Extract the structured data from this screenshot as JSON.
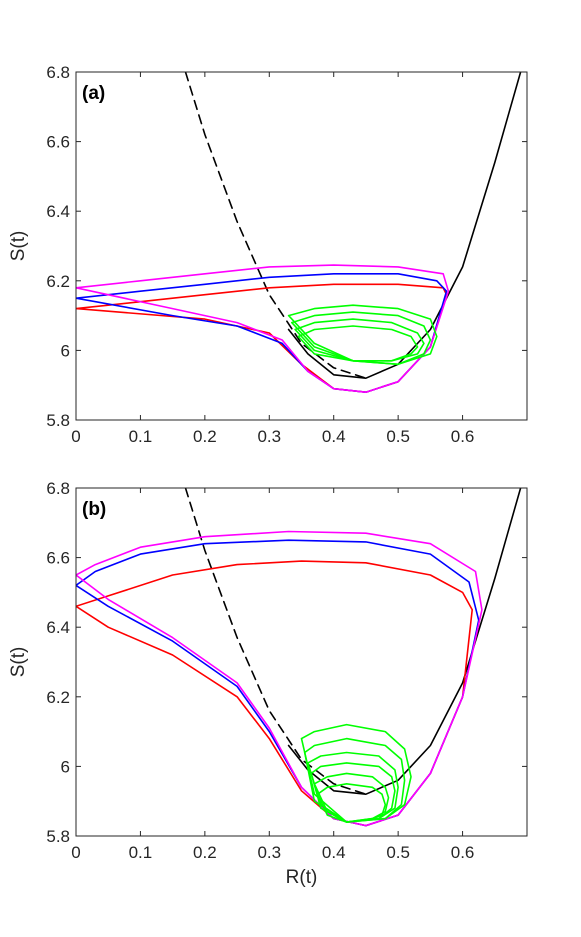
{
  "chart_data": [
    {
      "type": "line",
      "panel_label": "(a)",
      "xlabel": "",
      "ylabel": "S(t)",
      "xlim": [
        0,
        0.7
      ],
      "ylim": [
        5.8,
        6.8
      ],
      "xticks": [
        "0",
        "0.1",
        "0.2",
        "0.3",
        "0.4",
        "0.5",
        "0.6"
      ],
      "yticks": [
        "5.8",
        "6",
        "6.2",
        "6.4",
        "6.6",
        "6.8"
      ],
      "grid": false,
      "colors": {
        "nullcline_solid": "#000000",
        "nullcline_dashed": "#000000",
        "green": "#00ff00",
        "red": "#ff0000",
        "blue": "#0000ff",
        "magenta": "#ff00ff"
      },
      "series": [
        {
          "color": "#000000",
          "style": "solid",
          "x": [
            0.33,
            0.36,
            0.4,
            0.45,
            0.5,
            0.55,
            0.6,
            0.65,
            0.67,
            0.69
          ],
          "y": [
            6.06,
            5.99,
            5.93,
            5.92,
            5.96,
            6.06,
            6.24,
            6.54,
            6.67,
            6.8
          ]
        },
        {
          "color": "#000000",
          "style": "dashed",
          "x": [
            0.17,
            0.2,
            0.25,
            0.3,
            0.35,
            0.4,
            0.45
          ],
          "y": [
            6.8,
            6.62,
            6.37,
            6.16,
            6.02,
            5.95,
            5.92
          ]
        },
        {
          "color": "#ff0000",
          "style": "solid",
          "x": [
            0,
            0.2,
            0.3,
            0.35,
            0.4,
            0.45,
            0.5,
            0.55,
            0.575,
            0.57,
            0.5,
            0.4,
            0.3,
            0.2,
            0.1,
            0.05,
            0
          ],
          "y": [
            6.12,
            6.09,
            6.05,
            5.96,
            5.89,
            5.88,
            5.91,
            6.01,
            6.16,
            6.18,
            6.19,
            6.19,
            6.18,
            6.16,
            6.14,
            6.13,
            6.12
          ]
        },
        {
          "color": "#0000ff",
          "style": "solid",
          "x": [
            0,
            0.15,
            0.25,
            0.32,
            0.36,
            0.4,
            0.45,
            0.5,
            0.55,
            0.575,
            0.56,
            0.5,
            0.4,
            0.3,
            0.2,
            0.1,
            0
          ],
          "y": [
            6.15,
            6.1,
            6.07,
            6.02,
            5.94,
            5.89,
            5.88,
            5.91,
            6.01,
            6.17,
            6.2,
            6.22,
            6.22,
            6.21,
            6.19,
            6.17,
            6.15
          ]
        },
        {
          "color": "#ff00ff",
          "style": "solid",
          "x": [
            0,
            0.15,
            0.25,
            0.32,
            0.36,
            0.4,
            0.45,
            0.5,
            0.55,
            0.578,
            0.57,
            0.5,
            0.4,
            0.3,
            0.2,
            0.1,
            0
          ],
          "y": [
            6.18,
            6.12,
            6.08,
            6.03,
            5.94,
            5.89,
            5.88,
            5.91,
            6.01,
            6.17,
            6.22,
            6.24,
            6.245,
            6.24,
            6.22,
            6.2,
            6.18
          ]
        },
        {
          "color": "#00ff00",
          "style": "solid",
          "x": [
            0.33,
            0.37,
            0.43,
            0.5,
            0.55,
            0.56,
            0.55,
            0.5,
            0.43,
            0.37,
            0.33
          ],
          "y": [
            6.1,
            6.12,
            6.13,
            6.12,
            6.09,
            6.04,
            5.99,
            5.96,
            5.97,
            6.02,
            6.1
          ]
        },
        {
          "color": "#00ff00",
          "style": "solid",
          "x": [
            0.335,
            0.37,
            0.43,
            0.5,
            0.54,
            0.55,
            0.54,
            0.5,
            0.43,
            0.37,
            0.335
          ],
          "y": [
            6.08,
            6.1,
            6.11,
            6.1,
            6.07,
            6.03,
            5.99,
            5.96,
            5.97,
            6.01,
            6.08
          ]
        },
        {
          "color": "#00ff00",
          "style": "solid",
          "x": [
            0.34,
            0.37,
            0.43,
            0.49,
            0.53,
            0.54,
            0.53,
            0.49,
            0.43,
            0.37,
            0.34
          ],
          "y": [
            6.06,
            6.08,
            6.09,
            6.08,
            6.05,
            6.02,
            5.99,
            5.97,
            5.97,
            6.0,
            6.06
          ]
        },
        {
          "color": "#00ff00",
          "style": "solid",
          "x": [
            0.345,
            0.37,
            0.43,
            0.49,
            0.52,
            0.53,
            0.52,
            0.49,
            0.43,
            0.37,
            0.345
          ],
          "y": [
            6.04,
            6.06,
            6.07,
            6.06,
            6.04,
            6.01,
            5.99,
            5.97,
            5.97,
            5.99,
            6.04
          ]
        }
      ]
    },
    {
      "type": "line",
      "panel_label": "(b)",
      "xlabel": "R(t)",
      "ylabel": "S(t)",
      "xlim": [
        0,
        0.7
      ],
      "ylim": [
        5.8,
        6.8
      ],
      "xticks": [
        "0",
        "0.1",
        "0.2",
        "0.3",
        "0.4",
        "0.5",
        "0.6"
      ],
      "yticks": [
        "5.8",
        "6",
        "6.2",
        "6.4",
        "6.6",
        "6.8"
      ],
      "grid": false,
      "colors": {
        "nullcline_solid": "#000000",
        "nullcline_dashed": "#000000",
        "green": "#00ff00",
        "red": "#ff0000",
        "blue": "#0000ff",
        "magenta": "#ff00ff"
      },
      "series": [
        {
          "color": "#000000",
          "style": "solid",
          "x": [
            0.33,
            0.36,
            0.4,
            0.45,
            0.5,
            0.55,
            0.6,
            0.65,
            0.67,
            0.69
          ],
          "y": [
            6.06,
            5.99,
            5.93,
            5.92,
            5.96,
            6.06,
            6.24,
            6.54,
            6.67,
            6.8
          ]
        },
        {
          "color": "#000000",
          "style": "dashed",
          "x": [
            0.17,
            0.2,
            0.25,
            0.3,
            0.35,
            0.4,
            0.45
          ],
          "y": [
            6.8,
            6.62,
            6.37,
            6.16,
            6.02,
            5.95,
            5.92
          ]
        },
        {
          "color": "#ff0000",
          "style": "solid",
          "x": [
            0,
            0.05,
            0.15,
            0.25,
            0.3,
            0.35,
            0.4,
            0.45,
            0.5,
            0.55,
            0.6,
            0.615,
            0.6,
            0.55,
            0.45,
            0.35,
            0.25,
            0.15,
            0.05,
            0
          ],
          "y": [
            6.46,
            6.4,
            6.32,
            6.2,
            6.08,
            5.93,
            5.85,
            5.83,
            5.86,
            5.98,
            6.2,
            6.45,
            6.5,
            6.55,
            6.585,
            6.59,
            6.58,
            6.55,
            6.49,
            6.46
          ]
        },
        {
          "color": "#0000ff",
          "style": "solid",
          "x": [
            0,
            0.05,
            0.15,
            0.25,
            0.3,
            0.35,
            0.4,
            0.45,
            0.5,
            0.55,
            0.6,
            0.625,
            0.61,
            0.55,
            0.45,
            0.33,
            0.2,
            0.1,
            0.03,
            0
          ],
          "y": [
            6.52,
            6.46,
            6.36,
            6.23,
            6.1,
            5.94,
            5.85,
            5.83,
            5.86,
            5.98,
            6.2,
            6.42,
            6.53,
            6.61,
            6.645,
            6.65,
            6.64,
            6.61,
            6.56,
            6.52
          ]
        },
        {
          "color": "#ff00ff",
          "style": "solid",
          "x": [
            0,
            0.05,
            0.15,
            0.25,
            0.3,
            0.35,
            0.4,
            0.45,
            0.5,
            0.55,
            0.6,
            0.63,
            0.62,
            0.55,
            0.45,
            0.33,
            0.2,
            0.1,
            0.03,
            0
          ],
          "y": [
            6.55,
            6.48,
            6.37,
            6.24,
            6.11,
            5.94,
            5.85,
            5.83,
            5.86,
            5.98,
            6.2,
            6.45,
            6.56,
            6.64,
            6.67,
            6.675,
            6.66,
            6.63,
            6.58,
            6.55
          ]
        },
        {
          "color": "#00ff00",
          "style": "solid",
          "x": [
            0.35,
            0.37,
            0.42,
            0.48,
            0.51,
            0.52,
            0.51,
            0.48,
            0.42,
            0.37,
            0.35
          ],
          "y": [
            6.08,
            6.1,
            6.12,
            6.1,
            6.05,
            5.97,
            5.89,
            5.85,
            5.84,
            5.92,
            6.08
          ]
        },
        {
          "color": "#00ff00",
          "style": "solid",
          "x": [
            0.355,
            0.37,
            0.42,
            0.48,
            0.505,
            0.51,
            0.505,
            0.48,
            0.42,
            0.37,
            0.355
          ],
          "y": [
            6.04,
            6.06,
            6.08,
            6.06,
            6.02,
            5.96,
            5.89,
            5.85,
            5.84,
            5.9,
            6.04
          ]
        },
        {
          "color": "#00ff00",
          "style": "solid",
          "x": [
            0.36,
            0.38,
            0.42,
            0.47,
            0.495,
            0.5,
            0.495,
            0.47,
            0.42,
            0.38,
            0.36
          ],
          "y": [
            6.01,
            6.03,
            6.04,
            6.03,
            5.99,
            5.94,
            5.88,
            5.85,
            5.84,
            5.89,
            6.01
          ]
        },
        {
          "color": "#00ff00",
          "style": "solid",
          "x": [
            0.365,
            0.38,
            0.42,
            0.47,
            0.49,
            0.495,
            0.49,
            0.47,
            0.42,
            0.38,
            0.365
          ],
          "y": [
            5.98,
            6.0,
            6.01,
            6.0,
            5.97,
            5.93,
            5.88,
            5.85,
            5.84,
            5.88,
            5.98
          ]
        },
        {
          "color": "#00ff00",
          "style": "solid",
          "x": [
            0.37,
            0.39,
            0.42,
            0.46,
            0.48,
            0.485,
            0.48,
            0.46,
            0.42,
            0.39,
            0.37
          ],
          "y": [
            5.95,
            5.97,
            5.98,
            5.97,
            5.94,
            5.91,
            5.87,
            5.85,
            5.84,
            5.87,
            5.95
          ]
        },
        {
          "color": "#00ff00",
          "style": "solid",
          "x": [
            0.375,
            0.39,
            0.42,
            0.46,
            0.475,
            0.48,
            0.475,
            0.46,
            0.42,
            0.39,
            0.375
          ],
          "y": [
            5.92,
            5.94,
            5.95,
            5.94,
            5.92,
            5.89,
            5.86,
            5.85,
            5.84,
            5.86,
            5.92
          ]
        }
      ]
    }
  ]
}
